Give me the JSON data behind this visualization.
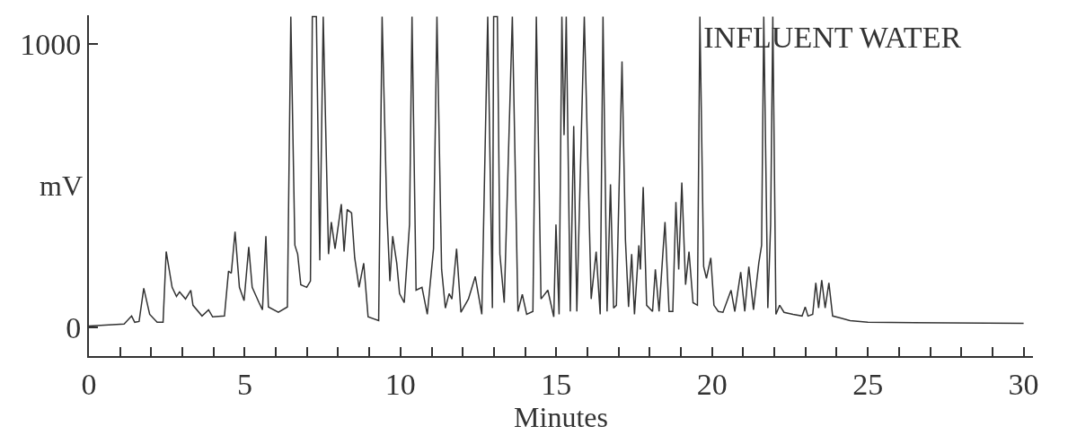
{
  "chart_data": {
    "type": "line",
    "title": "INFLUENT WATER",
    "xlabel": "Minutes",
    "ylabel": "mV",
    "xlim": [
      0,
      30.3
    ],
    "ylim": [
      -100,
      1100
    ],
    "xticks": [
      0,
      {
        "value": 1,
        "label": null
      },
      {
        "value": 2,
        "label": null
      },
      {
        "value": 3,
        "label": null
      },
      {
        "value": 4,
        "label": null
      },
      5,
      {
        "value": 6,
        "label": null
      },
      {
        "value": 7,
        "label": null
      },
      {
        "value": 8,
        "label": null
      },
      {
        "value": 9,
        "label": null
      },
      10,
      {
        "value": 11,
        "label": null
      },
      {
        "value": 12,
        "label": null
      },
      {
        "value": 13,
        "label": null
      },
      {
        "value": 14,
        "label": null
      },
      15,
      {
        "value": 16,
        "label": null
      },
      {
        "value": 17,
        "label": null
      },
      {
        "value": 18,
        "label": null
      },
      {
        "value": 19,
        "label": null
      },
      20,
      {
        "value": 21,
        "label": null
      },
      {
        "value": 22,
        "label": null
      },
      {
        "value": 23,
        "label": null
      },
      {
        "value": 24,
        "label": null
      },
      25,
      {
        "value": 26,
        "label": null
      },
      {
        "value": 27,
        "label": null
      },
      {
        "value": 28,
        "label": null
      },
      {
        "value": 29,
        "label": null
      },
      30
    ],
    "yticks": [
      0,
      1000
    ],
    "marker": "none",
    "line_style": "solid",
    "series": [
      {
        "color": "#333333",
        "x": [
          0,
          1.13,
          1.37,
          1.47,
          1.61,
          1.76,
          1.95,
          2.19,
          2.38,
          2.48,
          2.67,
          2.81,
          2.91,
          3.1,
          3.27,
          3.34,
          3.63,
          3.84,
          3.97,
          4.35,
          4.48,
          4.57,
          4.69,
          4.83,
          4.98,
          5.13,
          5.24,
          5.46,
          5.57,
          5.68,
          5.76,
          6.08,
          6.37,
          6.48,
          6.61,
          6.7,
          6.8,
          6.99,
          7.11,
          7.17,
          7.3,
          7.41,
          7.52,
          7.69,
          7.78,
          7.9,
          8.1,
          8.19,
          8.29,
          8.43,
          8.53,
          8.67,
          8.82,
          8.96,
          9.3,
          9.41,
          9.56,
          9.66,
          9.75,
          9.88,
          9.97,
          10.12,
          10.29,
          10.37,
          10.5,
          10.69,
          10.86,
          11.06,
          11.17,
          11.32,
          11.44,
          11.56,
          11.65,
          11.8,
          11.94,
          12.18,
          12.4,
          12.61,
          12.8,
          12.95,
          12.99,
          13.11,
          13.19,
          13.33,
          13.59,
          13.77,
          13.91,
          14.05,
          14.25,
          14.36,
          14.51,
          14.73,
          14.92,
          14.99,
          15.09,
          15.18,
          15.25,
          15.32,
          15.45,
          15.56,
          15.66,
          15.9,
          16.12,
          16.28,
          16.41,
          16.5,
          16.63,
          16.74,
          16.84,
          16.93,
          17.11,
          17.22,
          17.32,
          17.42,
          17.51,
          17.65,
          17.7,
          17.79,
          17.9,
          18.09,
          18.18,
          18.3,
          18.42,
          18.49,
          18.62,
          18.74,
          18.84,
          18.93,
          19.03,
          19.15,
          19.26,
          19.39,
          19.53,
          19.61,
          19.73,
          19.82,
          19.96,
          20.06,
          20.2,
          20.35,
          20.61,
          20.73,
          20.92,
          21.05,
          21.18,
          21.33,
          21.5,
          21.59,
          21.66,
          21.79,
          21.88,
          21.95,
          22.05,
          22.17,
          22.31,
          22.6,
          22.89,
          22.99,
          23.08,
          23.23,
          23.33,
          23.42,
          23.52,
          23.63,
          23.75,
          23.87,
          24.09,
          24.43,
          25.0,
          30.0
        ],
        "values": [
          6,
          13,
          41,
          19,
          22,
          139,
          47,
          19,
          19,
          268,
          142,
          110,
          126,
          101,
          132,
          79,
          41,
          63,
          38,
          41,
          199,
          192,
          338,
          142,
          95,
          284,
          142,
          88,
          63,
          322,
          73,
          54,
          73,
          1095,
          290,
          259,
          151,
          142,
          164,
          1095,
          1095,
          237,
          1095,
          259,
          372,
          278,
          435,
          268,
          416,
          404,
          246,
          142,
          227,
          38,
          25,
          1095,
          416,
          164,
          322,
          227,
          120,
          88,
          363,
          1095,
          132,
          142,
          47,
          278,
          1095,
          205,
          69,
          120,
          101,
          278,
          54,
          101,
          180,
          47,
          1095,
          69,
          1095,
          1095,
          259,
          88,
          1095,
          57,
          117,
          47,
          57,
          1095,
          101,
          132,
          38,
          363,
          47,
          1095,
          678,
          1095,
          57,
          710,
          57,
          1095,
          101,
          268,
          47,
          1095,
          57,
          505,
          69,
          79,
          937,
          309,
          73,
          259,
          47,
          290,
          205,
          495,
          79,
          57,
          205,
          57,
          259,
          372,
          57,
          57,
          442,
          205,
          511,
          151,
          268,
          88,
          79,
          1095,
          215,
          174,
          246,
          79,
          57,
          54,
          132,
          57,
          196,
          57,
          215,
          63,
          227,
          290,
          1095,
          69,
          363,
          1095,
          47,
          79,
          54,
          47,
          41,
          73,
          41,
          47,
          158,
          69,
          167,
          69,
          158,
          41,
          35,
          25,
          19,
          15
        ]
      }
    ]
  }
}
